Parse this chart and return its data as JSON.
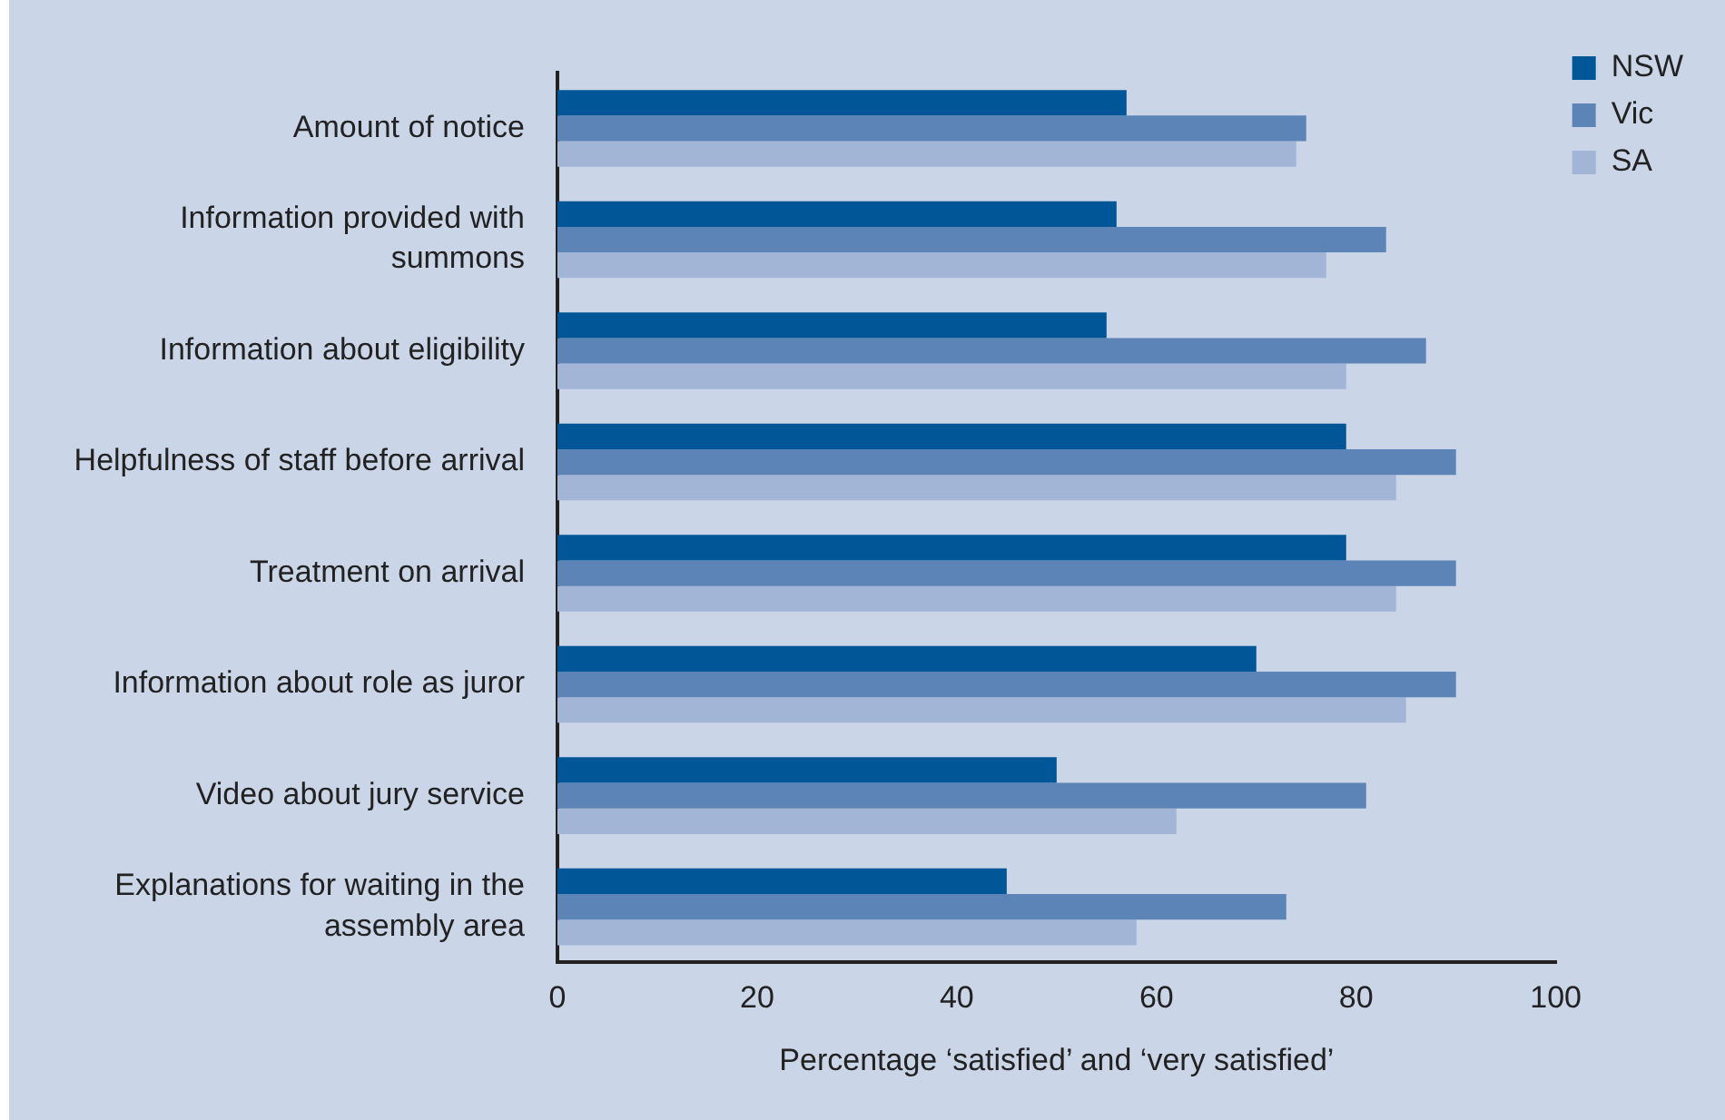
{
  "chart_data": {
    "type": "bar",
    "orientation": "horizontal",
    "xlabel": "Percentage ‘satisfied’ and ‘very satisfied’",
    "categories": [
      "Amount of notice",
      "Information provided with summons",
      "Information about eligibility",
      "Helpfulness of staff before arrival",
      "Treatment on arrival",
      "Information about role as juror",
      "Video about jury service",
      "Explanations for waiting in the assembly area"
    ],
    "series": [
      {
        "name": "NSW",
        "color": "#005696",
        "values": [
          57,
          56,
          55,
          79,
          79,
          70,
          50,
          45
        ]
      },
      {
        "name": "Vic",
        "color": "#5d84b7",
        "values": [
          75,
          83,
          87,
          90,
          90,
          90,
          81,
          73
        ]
      },
      {
        "name": "SA",
        "color": "#a2b5d7",
        "values": [
          74,
          77,
          79,
          84,
          84,
          85,
          62,
          58
        ]
      }
    ],
    "xlim": [
      0,
      100
    ],
    "xticks": [
      0,
      20,
      40,
      60,
      80,
      100
    ],
    "grid": false,
    "legend": "top right"
  }
}
